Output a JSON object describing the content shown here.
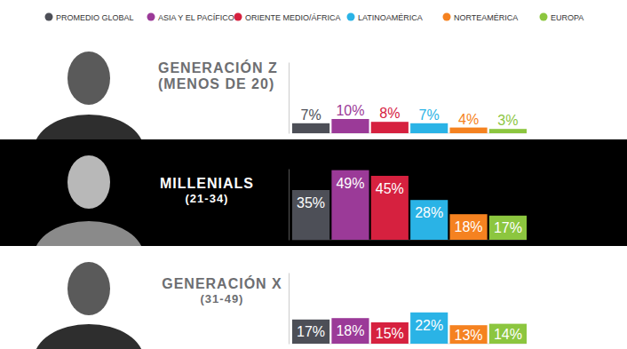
{
  "chart_data": {
    "type": "bar",
    "categories": [
      "GENERACIÓN Z (MENOS DE 20)",
      "MILLENIALS (21-34)",
      "GENERACIÓN X (31-49)"
    ],
    "series": [
      {
        "name": "PROMEDIO GLOBAL",
        "color": "#4d4f57",
        "values": [
          7,
          35,
          17
        ],
        "value_labels": [
          "7%",
          "35%",
          "17%"
        ]
      },
      {
        "name": "ASIA Y EL PACÍFICO",
        "color": "#9b3a98",
        "values": [
          10,
          49,
          18
        ],
        "value_labels": [
          "10%",
          "49%",
          "18%"
        ]
      },
      {
        "name": "ORIENTE MEDIO/ÁFRICA",
        "color": "#d6213f",
        "values": [
          8,
          45,
          15
        ],
        "value_labels": [
          "8%",
          "45%",
          "15%"
        ]
      },
      {
        "name": "LATINOAMÉRICA",
        "color": "#2ab3e6",
        "values": [
          7,
          28,
          22
        ],
        "value_labels": [
          "7%",
          "28%",
          "22%"
        ]
      },
      {
        "name": "NORTEAMÉRICA",
        "color": "#f58220",
        "values": [
          4,
          18,
          13
        ],
        "value_labels": [
          "4%",
          "18%",
          "13%"
        ]
      },
      {
        "name": "EUROPA",
        "color": "#8cc63f",
        "values": [
          3,
          17,
          14
        ],
        "value_labels": [
          "3%",
          "17%",
          "14%"
        ]
      }
    ],
    "ylim": [
      0,
      50
    ],
    "tick_labels": false,
    "data_labels": true,
    "legend": "top"
  }
}
